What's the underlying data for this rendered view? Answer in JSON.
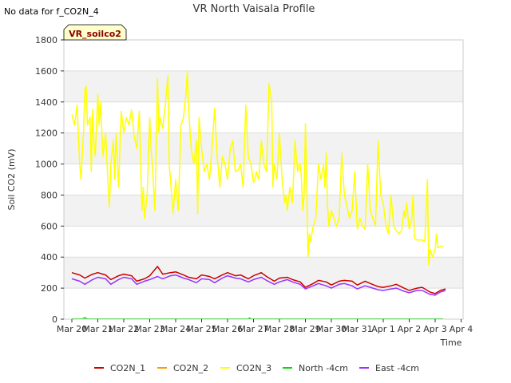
{
  "chart_data": {
    "type": "line",
    "title": "VR North Vaisala Profile",
    "corner_note": "No data for f_CO2N_4",
    "site_badge": "VR_soilco2",
    "xlabel": "Time",
    "ylabel": "Soil CO2 (mV)",
    "ylim": [
      0,
      1800
    ],
    "y_ticks": [
      0,
      200,
      400,
      600,
      800,
      1000,
      1200,
      1400,
      1600,
      1800
    ],
    "x_range_days": [
      0,
      15.3
    ],
    "x_ticks": [
      {
        "day": 0,
        "label": "Mar 20"
      },
      {
        "day": 1,
        "label": "Mar 21"
      },
      {
        "day": 2,
        "label": "Mar 22"
      },
      {
        "day": 3,
        "label": "Mar 23"
      },
      {
        "day": 4,
        "label": "Mar 24"
      },
      {
        "day": 5,
        "label": "Mar 25"
      },
      {
        "day": 6,
        "label": "Mar 26"
      },
      {
        "day": 7,
        "label": "Mar 27"
      },
      {
        "day": 8,
        "label": "Mar 28"
      },
      {
        "day": 9,
        "label": "Mar 29"
      },
      {
        "day": 10,
        "label": "Mar 30"
      },
      {
        "day": 11,
        "label": "Mar 31"
      },
      {
        "day": 12,
        "label": "Apr 1"
      },
      {
        "day": 13,
        "label": "Apr 2"
      },
      {
        "day": 14,
        "label": "Apr 3"
      },
      {
        "day": 15,
        "label": "Apr 4"
      }
    ],
    "grid": "horizontal bands",
    "legend_position": "bottom",
    "series": [
      {
        "name": "CO2N_1",
        "color": "#cc0000",
        "points": [
          [
            0.0,
            300
          ],
          [
            0.3,
            285
          ],
          [
            0.5,
            265
          ],
          [
            0.8,
            290
          ],
          [
            1.0,
            300
          ],
          [
            1.3,
            285
          ],
          [
            1.5,
            255
          ],
          [
            1.8,
            280
          ],
          [
            2.0,
            290
          ],
          [
            2.3,
            280
          ],
          [
            2.5,
            245
          ],
          [
            2.8,
            260
          ],
          [
            3.0,
            280
          ],
          [
            3.3,
            340
          ],
          [
            3.5,
            290
          ],
          [
            3.8,
            300
          ],
          [
            4.0,
            305
          ],
          [
            4.3,
            285
          ],
          [
            4.5,
            270
          ],
          [
            4.8,
            260
          ],
          [
            5.0,
            285
          ],
          [
            5.3,
            275
          ],
          [
            5.5,
            260
          ],
          [
            5.8,
            285
          ],
          [
            6.0,
            300
          ],
          [
            6.3,
            280
          ],
          [
            6.5,
            285
          ],
          [
            6.8,
            260
          ],
          [
            7.0,
            280
          ],
          [
            7.3,
            300
          ],
          [
            7.5,
            275
          ],
          [
            7.8,
            245
          ],
          [
            8.0,
            265
          ],
          [
            8.3,
            270
          ],
          [
            8.5,
            255
          ],
          [
            8.8,
            240
          ],
          [
            9.0,
            205
          ],
          [
            9.3,
            230
          ],
          [
            9.5,
            250
          ],
          [
            9.8,
            240
          ],
          [
            10.0,
            220
          ],
          [
            10.3,
            245
          ],
          [
            10.5,
            250
          ],
          [
            10.8,
            245
          ],
          [
            11.0,
            220
          ],
          [
            11.3,
            245
          ],
          [
            11.5,
            230
          ],
          [
            11.8,
            210
          ],
          [
            12.0,
            205
          ],
          [
            12.3,
            215
          ],
          [
            12.5,
            225
          ],
          [
            12.8,
            200
          ],
          [
            13.0,
            185
          ],
          [
            13.3,
            200
          ],
          [
            13.5,
            205
          ],
          [
            13.8,
            175
          ],
          [
            14.0,
            165
          ],
          [
            14.2,
            185
          ],
          [
            14.4,
            195
          ]
        ]
      },
      {
        "name": "CO2N_2",
        "color": "#ff9900",
        "points": []
      },
      {
        "name": "CO2N_3",
        "color": "#ffff00",
        "points": [
          [
            0.0,
            1320
          ],
          [
            0.1,
            1250
          ],
          [
            0.2,
            1380
          ],
          [
            0.3,
            1000
          ],
          [
            0.35,
            900
          ],
          [
            0.45,
            1200
          ],
          [
            0.5,
            1480
          ],
          [
            0.55,
            1500
          ],
          [
            0.6,
            1250
          ],
          [
            0.7,
            1300
          ],
          [
            0.75,
            950
          ],
          [
            0.8,
            1350
          ],
          [
            0.85,
            1150
          ],
          [
            0.9,
            1050
          ],
          [
            1.0,
            1450
          ],
          [
            1.05,
            1250
          ],
          [
            1.1,
            1400
          ],
          [
            1.2,
            1050
          ],
          [
            1.3,
            1200
          ],
          [
            1.4,
            850
          ],
          [
            1.45,
            720
          ],
          [
            1.5,
            1000
          ],
          [
            1.6,
            1150
          ],
          [
            1.65,
            900
          ],
          [
            1.7,
            1200
          ],
          [
            1.8,
            850
          ],
          [
            1.9,
            1340
          ],
          [
            2.0,
            1200
          ],
          [
            2.1,
            1300
          ],
          [
            2.2,
            1250
          ],
          [
            2.3,
            1350
          ],
          [
            2.4,
            1180
          ],
          [
            2.5,
            1100
          ],
          [
            2.6,
            1340
          ],
          [
            2.7,
            700
          ],
          [
            2.75,
            850
          ],
          [
            2.8,
            650
          ],
          [
            2.9,
            800
          ],
          [
            3.0,
            1300
          ],
          [
            3.05,
            1100
          ],
          [
            3.1,
            1000
          ],
          [
            3.2,
            700
          ],
          [
            3.3,
            1550
          ],
          [
            3.35,
            1200
          ],
          [
            3.4,
            1300
          ],
          [
            3.5,
            1230
          ],
          [
            3.6,
            1380
          ],
          [
            3.7,
            1570
          ],
          [
            3.75,
            1000
          ],
          [
            3.8,
            900
          ],
          [
            3.9,
            680
          ],
          [
            4.0,
            900
          ],
          [
            4.1,
            700
          ],
          [
            4.2,
            1250
          ],
          [
            4.3,
            1300
          ],
          [
            4.35,
            1380
          ],
          [
            4.4,
            1450
          ],
          [
            4.45,
            1600
          ],
          [
            4.5,
            1350
          ],
          [
            4.55,
            1220
          ],
          [
            4.6,
            1100
          ],
          [
            4.7,
            1000
          ],
          [
            4.8,
            1150
          ],
          [
            4.85,
            680
          ],
          [
            4.9,
            1300
          ],
          [
            5.0,
            1100
          ],
          [
            5.1,
            950
          ],
          [
            5.2,
            1000
          ],
          [
            5.3,
            900
          ],
          [
            5.4,
            1100
          ],
          [
            5.5,
            1360
          ],
          [
            5.55,
            1200
          ],
          [
            5.6,
            1050
          ],
          [
            5.7,
            850
          ],
          [
            5.8,
            1050
          ],
          [
            5.9,
            1000
          ],
          [
            6.0,
            900
          ],
          [
            6.1,
            1100
          ],
          [
            6.2,
            1150
          ],
          [
            6.3,
            950
          ],
          [
            6.4,
            960
          ],
          [
            6.5,
            1000
          ],
          [
            6.6,
            850
          ],
          [
            6.7,
            1380
          ],
          [
            6.8,
            1050
          ],
          [
            6.9,
            1000
          ],
          [
            7.0,
            880
          ],
          [
            7.05,
            900
          ],
          [
            7.1,
            950
          ],
          [
            7.2,
            900
          ],
          [
            7.3,
            1150
          ],
          [
            7.4,
            1000
          ],
          [
            7.5,
            950
          ],
          [
            7.6,
            1520
          ],
          [
            7.7,
            1400
          ],
          [
            7.75,
            850
          ],
          [
            7.8,
            1000
          ],
          [
            7.9,
            900
          ],
          [
            8.0,
            1200
          ],
          [
            8.1,
            900
          ],
          [
            8.2,
            750
          ],
          [
            8.25,
            800
          ],
          [
            8.3,
            700
          ],
          [
            8.4,
            850
          ],
          [
            8.5,
            750
          ],
          [
            8.6,
            1150
          ],
          [
            8.7,
            950
          ],
          [
            8.75,
            1000
          ],
          [
            8.8,
            1000
          ],
          [
            8.85,
            900
          ],
          [
            8.9,
            700
          ],
          [
            8.95,
            800
          ],
          [
            9.0,
            1260
          ],
          [
            9.05,
            900
          ],
          [
            9.1,
            400
          ],
          [
            9.15,
            550
          ],
          [
            9.2,
            500
          ],
          [
            9.3,
            600
          ],
          [
            9.4,
            650
          ],
          [
            9.5,
            1000
          ],
          [
            9.6,
            900
          ],
          [
            9.7,
            1000
          ],
          [
            9.75,
            850
          ],
          [
            9.8,
            1070
          ],
          [
            9.85,
            750
          ],
          [
            9.9,
            600
          ],
          [
            10.0,
            700
          ],
          [
            10.1,
            650
          ],
          [
            10.2,
            600
          ],
          [
            10.3,
            650
          ],
          [
            10.4,
            1070
          ],
          [
            10.5,
            800
          ],
          [
            10.6,
            730
          ],
          [
            10.7,
            650
          ],
          [
            10.8,
            700
          ],
          [
            10.9,
            950
          ],
          [
            11.0,
            580
          ],
          [
            11.1,
            650
          ],
          [
            11.2,
            600
          ],
          [
            11.3,
            580
          ],
          [
            11.4,
            1000
          ],
          [
            11.5,
            700
          ],
          [
            11.6,
            650
          ],
          [
            11.7,
            600
          ],
          [
            11.8,
            1150
          ],
          [
            11.9,
            800
          ],
          [
            12.0,
            750
          ],
          [
            12.1,
            600
          ],
          [
            12.2,
            550
          ],
          [
            12.3,
            800
          ],
          [
            12.4,
            600
          ],
          [
            12.5,
            570
          ],
          [
            12.6,
            550
          ],
          [
            12.7,
            570
          ],
          [
            12.8,
            700
          ],
          [
            12.85,
            650
          ],
          [
            12.9,
            750
          ],
          [
            13.0,
            580
          ],
          [
            13.1,
            650
          ],
          [
            13.15,
            800
          ],
          [
            13.2,
            520
          ],
          [
            13.3,
            510
          ],
          [
            13.4,
            510
          ],
          [
            13.5,
            510
          ],
          [
            13.6,
            500
          ],
          [
            13.7,
            900
          ],
          [
            13.75,
            350
          ],
          [
            13.8,
            450
          ],
          [
            13.9,
            400
          ],
          [
            14.0,
            450
          ],
          [
            14.05,
            550
          ],
          [
            14.1,
            460
          ],
          [
            14.2,
            470
          ],
          [
            14.3,
            470
          ]
        ]
      },
      {
        "name": "North -4cm",
        "color": "#00dd00",
        "points": [
          [
            0.0,
            1
          ],
          [
            0.4,
            1
          ],
          [
            0.5,
            10
          ],
          [
            0.6,
            1
          ],
          [
            6.8,
            1
          ],
          [
            6.85,
            8
          ],
          [
            6.9,
            1
          ],
          [
            14.3,
            1
          ]
        ]
      },
      {
        "name": "East -4cm",
        "color": "#9933ff",
        "points": [
          [
            0.0,
            260
          ],
          [
            0.3,
            245
          ],
          [
            0.5,
            225
          ],
          [
            0.8,
            255
          ],
          [
            1.0,
            270
          ],
          [
            1.3,
            260
          ],
          [
            1.5,
            225
          ],
          [
            1.8,
            255
          ],
          [
            2.0,
            270
          ],
          [
            2.3,
            260
          ],
          [
            2.5,
            225
          ],
          [
            2.8,
            245
          ],
          [
            3.0,
            255
          ],
          [
            3.3,
            275
          ],
          [
            3.5,
            260
          ],
          [
            3.8,
            280
          ],
          [
            4.0,
            285
          ],
          [
            4.3,
            265
          ],
          [
            4.5,
            255
          ],
          [
            4.8,
            235
          ],
          [
            5.0,
            260
          ],
          [
            5.3,
            255
          ],
          [
            5.5,
            235
          ],
          [
            5.8,
            265
          ],
          [
            6.0,
            280
          ],
          [
            6.3,
            265
          ],
          [
            6.5,
            260
          ],
          [
            6.8,
            240
          ],
          [
            7.0,
            255
          ],
          [
            7.3,
            270
          ],
          [
            7.5,
            250
          ],
          [
            7.8,
            225
          ],
          [
            8.0,
            240
          ],
          [
            8.3,
            255
          ],
          [
            8.5,
            240
          ],
          [
            8.8,
            225
          ],
          [
            9.0,
            195
          ],
          [
            9.3,
            215
          ],
          [
            9.5,
            230
          ],
          [
            9.8,
            215
          ],
          [
            10.0,
            200
          ],
          [
            10.3,
            225
          ],
          [
            10.5,
            230
          ],
          [
            10.8,
            215
          ],
          [
            11.0,
            195
          ],
          [
            11.3,
            215
          ],
          [
            11.5,
            205
          ],
          [
            11.8,
            190
          ],
          [
            12.0,
            185
          ],
          [
            12.3,
            195
          ],
          [
            12.5,
            200
          ],
          [
            12.8,
            180
          ],
          [
            13.0,
            170
          ],
          [
            13.3,
            185
          ],
          [
            13.5,
            185
          ],
          [
            13.8,
            160
          ],
          [
            14.0,
            155
          ],
          [
            14.2,
            175
          ],
          [
            14.4,
            185
          ]
        ]
      }
    ]
  }
}
